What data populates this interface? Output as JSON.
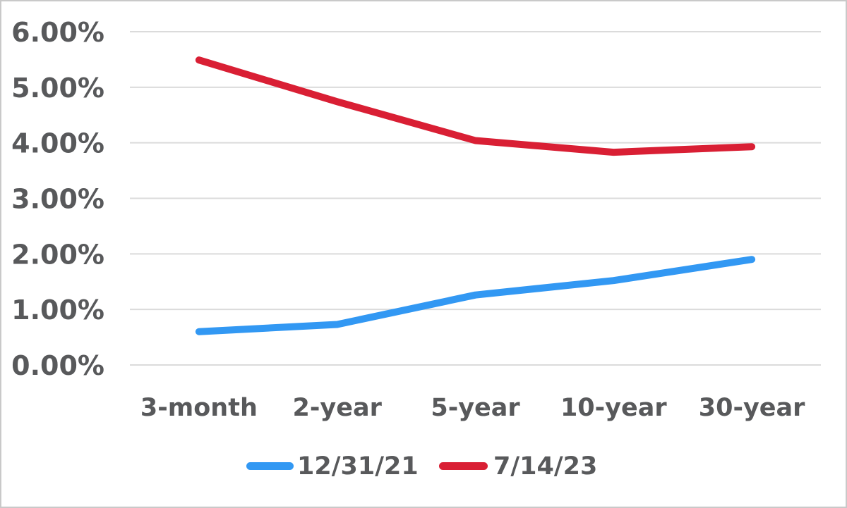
{
  "chart_data": {
    "type": "line",
    "title": "",
    "xlabel": "",
    "ylabel": "",
    "categories": [
      "3-month",
      "2-year",
      "5-year",
      "10-year",
      "30-year"
    ],
    "series": [
      {
        "name": "12/31/21",
        "color": "#3298f3",
        "values": [
          0.6,
          0.73,
          1.26,
          1.52,
          1.9
        ]
      },
      {
        "name": "7/14/23",
        "color": "#d91f34",
        "values": [
          5.49,
          4.74,
          4.04,
          3.83,
          3.93
        ]
      }
    ],
    "ylim": [
      0,
      6
    ],
    "yticks": [
      {
        "v": 0,
        "label": "0.00%"
      },
      {
        "v": 1,
        "label": "1.00%"
      },
      {
        "v": 2,
        "label": "2.00%"
      },
      {
        "v": 3,
        "label": "3.00%"
      },
      {
        "v": 4,
        "label": "4.00%"
      },
      {
        "v": 5,
        "label": "5.00%"
      },
      {
        "v": 6,
        "label": "6.00%"
      }
    ],
    "grid": true,
    "legend_position": "bottom"
  },
  "colors": {
    "text": "#58595b",
    "gridline": "#dbdbdb",
    "frame_border": "#c9c9c9",
    "background": "#ffffff"
  }
}
